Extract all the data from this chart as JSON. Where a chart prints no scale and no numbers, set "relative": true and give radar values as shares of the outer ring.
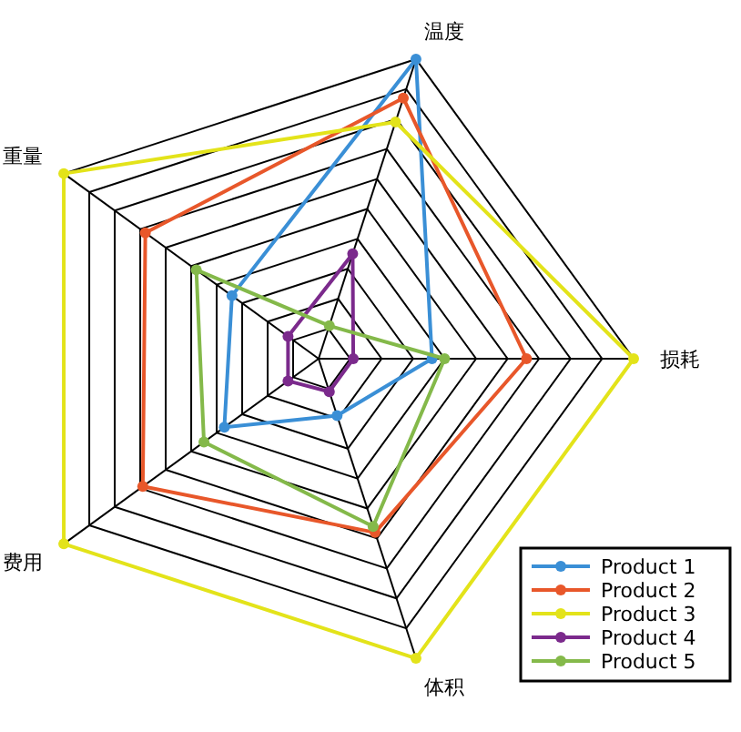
{
  "chart_data": {
    "type": "radar",
    "relative": true,
    "categories": [
      "温度",
      "损耗",
      "体积",
      "费用",
      "重量"
    ],
    "series": [
      {
        "name": "Product 1",
        "color": "#3a8fd6",
        "values": [
          1.0,
          0.36,
          0.19,
          0.37,
          0.34
        ]
      },
      {
        "name": "Product 2",
        "color": "#e8572a",
        "values": [
          0.87,
          0.66,
          0.58,
          0.69,
          0.68
        ]
      },
      {
        "name": "Product 3",
        "color": "#e3e31a",
        "values": [
          0.79,
          1.0,
          1.0,
          1.0,
          1.0
        ]
      },
      {
        "name": "Product 4",
        "color": "#7b2a8c",
        "values": [
          0.35,
          0.11,
          0.11,
          0.12,
          0.12
        ]
      },
      {
        "name": "Product 5",
        "color": "#84b94a",
        "values": [
          0.11,
          0.4,
          0.56,
          0.45,
          0.48
        ]
      }
    ],
    "grid": true,
    "marker": "circle",
    "legend": "bottom right"
  }
}
